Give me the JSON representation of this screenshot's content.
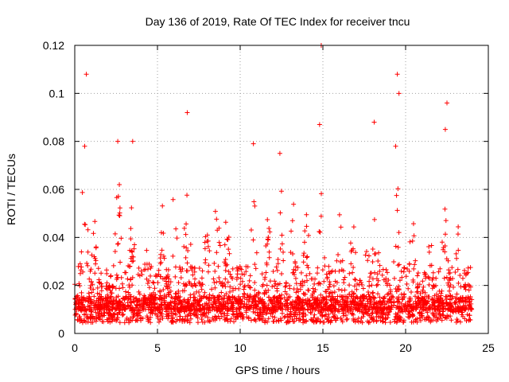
{
  "chart_data": {
    "type": "scatter",
    "title": "Day 136 of 2019, Rate Of TEC Index for receiver tncu",
    "xlabel": "GPS time / hours",
    "ylabel": "ROTI / TECUs",
    "xlim": [
      0,
      25
    ],
    "ylim": [
      0,
      0.12
    ],
    "x_ticks": [
      0,
      5,
      10,
      15,
      20,
      25
    ],
    "x_tick_labels": [
      "0",
      "5",
      "10",
      "15",
      "20",
      "25"
    ],
    "y_ticks": [
      0,
      0.02,
      0.04,
      0.06,
      0.08,
      0.1,
      0.12
    ],
    "y_tick_labels": [
      "0",
      "0.02",
      "0.04",
      "0.06",
      "0.08",
      "0.1",
      "0.12"
    ],
    "grid": true,
    "marker": "plus",
    "color": "#ff0000",
    "data_range_hours": [
      0,
      24
    ],
    "baseline_roti": 0.01,
    "notable_points": [
      {
        "x": 0.7,
        "y": 0.108
      },
      {
        "x": 0.6,
        "y": 0.078
      },
      {
        "x": 2.6,
        "y": 0.08
      },
      {
        "x": 3.5,
        "y": 0.08
      },
      {
        "x": 6.8,
        "y": 0.092
      },
      {
        "x": 10.8,
        "y": 0.079
      },
      {
        "x": 12.4,
        "y": 0.075
      },
      {
        "x": 14.8,
        "y": 0.087
      },
      {
        "x": 14.9,
        "y": 0.12
      },
      {
        "x": 18.1,
        "y": 0.088
      },
      {
        "x": 19.5,
        "y": 0.108
      },
      {
        "x": 19.6,
        "y": 0.1
      },
      {
        "x": 19.4,
        "y": 0.078
      },
      {
        "x": 22.5,
        "y": 0.096
      },
      {
        "x": 22.4,
        "y": 0.085
      }
    ]
  }
}
